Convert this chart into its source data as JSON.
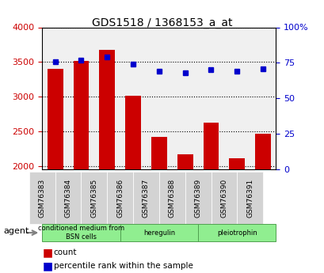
{
  "title": "GDS1518 / 1368153_a_at",
  "samples": [
    "GSM76383",
    "GSM76384",
    "GSM76385",
    "GSM76386",
    "GSM76387",
    "GSM76388",
    "GSM76389",
    "GSM76390",
    "GSM76391"
  ],
  "counts": [
    3400,
    3510,
    3670,
    3010,
    2420,
    2170,
    2620,
    2110,
    2460
  ],
  "percentiles": [
    76,
    77,
    79,
    74,
    69,
    68,
    70,
    69,
    71
  ],
  "ylim_left": [
    1950,
    4000
  ],
  "ylim_right": [
    0,
    100
  ],
  "yticks_left": [
    2000,
    2500,
    3000,
    3500,
    4000
  ],
  "yticks_right": [
    0,
    25,
    50,
    75,
    100
  ],
  "bar_color": "#cc0000",
  "dot_color": "#0000cc",
  "grid_color": "#000000",
  "bg_color": "#f0f0f0",
  "agent_groups": [
    {
      "label": "conditioned medium from\nBSN cells",
      "start": 0,
      "end": 3,
      "color": "#90ee90"
    },
    {
      "label": "heregulin",
      "start": 3,
      "end": 6,
      "color": "#90ee90"
    },
    {
      "label": "pleiotrophin",
      "start": 6,
      "end": 9,
      "color": "#90ee90"
    }
  ],
  "legend_count_label": "count",
  "legend_pct_label": "percentile rank within the sample"
}
